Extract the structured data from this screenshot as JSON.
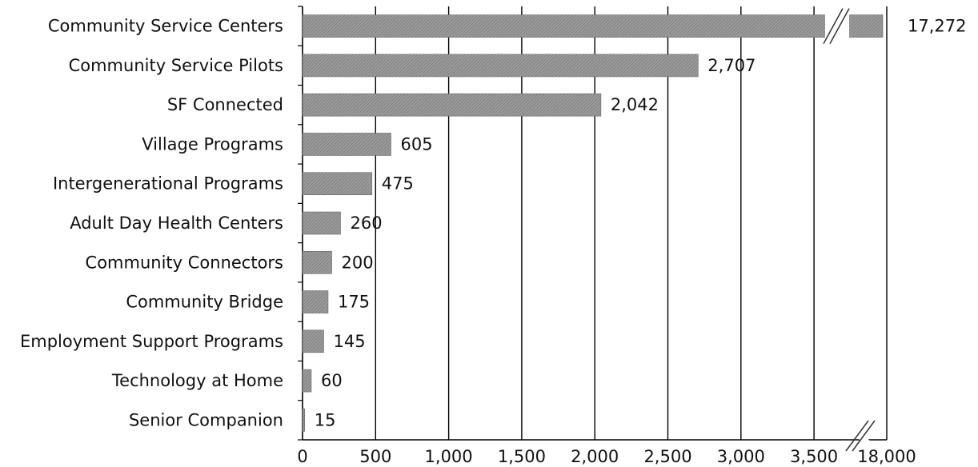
{
  "chart_data": {
    "type": "bar",
    "orientation": "horizontal",
    "categories": [
      "Community Service Centers",
      "Community Service Pilots",
      "SF Connected",
      "Village Programs",
      "Intergenerational Programs",
      "Adult Day Health Centers",
      "Community Connectors",
      "Community Bridge",
      "Employment Support Programs",
      "Technology at Home",
      "Senior Companion"
    ],
    "values": [
      17272,
      2707,
      2042,
      605,
      475,
      260,
      200,
      175,
      145,
      60,
      15
    ],
    "value_labels": [
      "17,272",
      "2,707",
      "2,042",
      "605",
      "475",
      "260",
      "200",
      "175",
      "145",
      "60",
      "15"
    ],
    "x_ticks": [
      "0",
      "500",
      "1,000",
      "1,500",
      "2,000",
      "2,500",
      "3,000",
      "3,500",
      "18,000"
    ],
    "x_tick_values": [
      0,
      500,
      1000,
      1500,
      2000,
      2500,
      3000,
      3500,
      18000
    ],
    "xlim": [
      0,
      18000
    ],
    "axis_break": "between 3,500 and 18,000",
    "grid": "vertical",
    "legend": "none",
    "bar_color": "#9a9a9a"
  }
}
